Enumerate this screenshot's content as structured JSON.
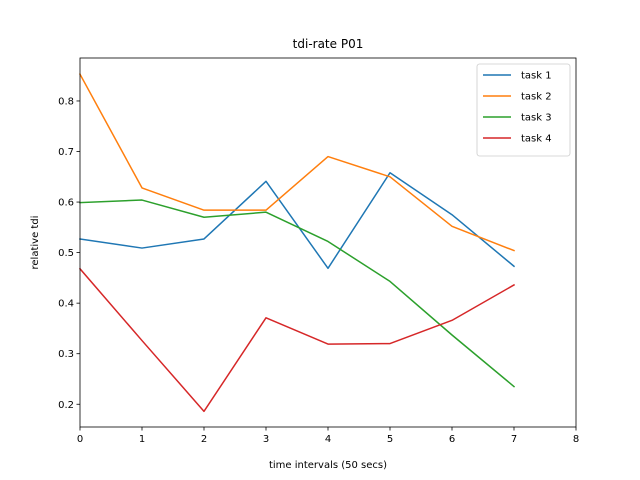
{
  "chart_data": {
    "type": "line",
    "title": "tdi-rate P01",
    "xlabel": "time intervals (50 secs)",
    "ylabel": "relative tdi",
    "xlim": [
      0,
      8
    ],
    "ylim": [
      0.155,
      0.885
    ],
    "xticks": [
      0,
      1,
      2,
      3,
      4,
      5,
      6,
      7,
      8
    ],
    "yticks": [
      0.2,
      0.3,
      0.4,
      0.5,
      0.6,
      0.7,
      0.8
    ],
    "x": [
      0,
      1,
      2,
      3,
      4,
      5,
      6,
      7
    ],
    "grid": false,
    "legend_position": "top-right",
    "series": [
      {
        "name": "task 1",
        "color": "#1f77b4",
        "values": [
          0.527,
          0.509,
          0.527,
          0.641,
          0.469,
          0.658,
          0.575,
          0.473
        ]
      },
      {
        "name": "task 2",
        "color": "#ff7f0e",
        "values": [
          0.853,
          0.628,
          0.584,
          0.584,
          0.69,
          0.65,
          0.552,
          0.504
        ]
      },
      {
        "name": "task 3",
        "color": "#2ca02c",
        "values": [
          0.599,
          0.604,
          0.57,
          0.58,
          0.522,
          0.443,
          0.337,
          0.235
        ]
      },
      {
        "name": "task 4",
        "color": "#d62728",
        "values": [
          0.468,
          0.326,
          0.186,
          0.371,
          0.319,
          0.32,
          0.366,
          0.436
        ]
      }
    ]
  }
}
